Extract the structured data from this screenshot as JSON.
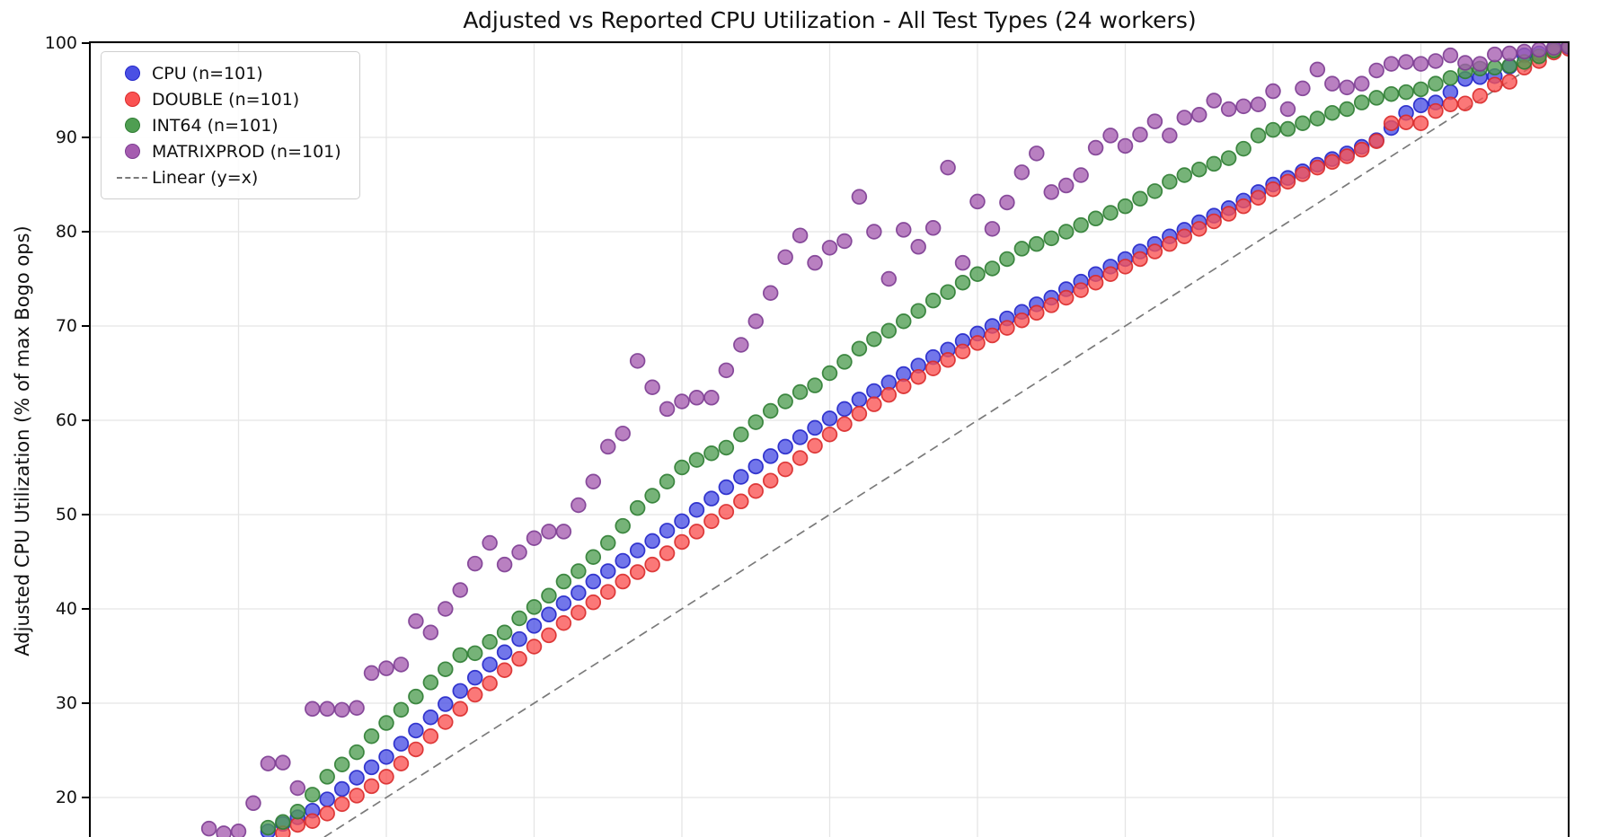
{
  "title": "Adjusted vs Reported CPU Utilization - All Test Types (24 workers)",
  "y_axis": {
    "label": "Adjusted CPU Utilization (% of max Bogo ops)",
    "ticks": [
      100,
      90,
      80,
      70,
      60,
      50,
      40,
      30,
      20
    ]
  },
  "legend": {
    "items": [
      {
        "label": "CPU (n=101)",
        "marker": "dot",
        "fill": "#4a50e4",
        "edge": "#2226c9"
      },
      {
        "label": "DOUBLE (n=101)",
        "marker": "dot",
        "fill": "#fa5252",
        "edge": "#d92b2b"
      },
      {
        "label": "INT64 (n=101)",
        "marker": "dot",
        "fill": "#4f9e52",
        "edge": "#2f7d33"
      },
      {
        "label": "MATRIXPROD (n=101)",
        "marker": "dot",
        "fill": "#a55cb0",
        "edge": "#7d3d92"
      },
      {
        "label": "Linear (y=x)",
        "marker": "dash",
        "fill": "#7a7a7a",
        "edge": "#7a7a7a"
      }
    ]
  },
  "colors": {
    "background": "#ffffff",
    "grid": "#e5e5e5",
    "spine": "#000000",
    "reference_line": "#7a7a7a"
  },
  "chart_data": {
    "type": "scatter",
    "title": "Adjusted vs Reported CPU Utilization - All Test Types (24 workers)",
    "ylabel": "Adjusted CPU Utilization (% of max Bogo ops)",
    "xlim": [
      0,
      100
    ],
    "ylim_visible": [
      15.8,
      100
    ],
    "x_tick_interval": 10,
    "grid": true,
    "legend_position": "upper-left",
    "reference_line": {
      "label": "Linear (y=x)",
      "style": "dashed",
      "from": [
        15.8,
        15.8
      ],
      "to": [
        100,
        100
      ]
    },
    "series": [
      {
        "name": "CPU (n=101)",
        "fill": "#4a50e4",
        "edge": "#2226c9",
        "x_start": 12,
        "x_step": 1,
        "y": [
          16.4,
          17.2,
          17.9,
          18.6,
          19.8,
          20.9,
          22.1,
          23.2,
          24.3,
          25.7,
          27.1,
          28.5,
          29.9,
          31.3,
          32.7,
          34.1,
          35.4,
          36.8,
          38.2,
          39.4,
          40.6,
          41.7,
          42.9,
          44.0,
          45.1,
          46.2,
          47.2,
          48.3,
          49.3,
          50.5,
          51.7,
          52.9,
          54.0,
          55.1,
          56.2,
          57.2,
          58.2,
          59.2,
          60.2,
          61.2,
          62.2,
          63.1,
          64.0,
          64.9,
          65.8,
          66.7,
          67.5,
          68.4,
          69.2,
          70.0,
          70.8,
          71.5,
          72.3,
          73.0,
          73.9,
          74.7,
          75.5,
          76.3,
          77.1,
          77.9,
          78.7,
          79.5,
          80.2,
          81.0,
          81.7,
          82.5,
          83.3,
          84.2,
          85.0,
          85.7,
          86.4,
          87.1,
          87.7,
          88.3,
          89.0,
          89.7,
          91.0,
          92.6,
          93.4,
          93.7,
          94.8,
          96.2,
          96.4,
          96.5,
          97.5,
          98.7,
          98.9,
          99.3,
          99.7
        ]
      },
      {
        "name": "DOUBLE (n=101)",
        "fill": "#fa5252",
        "edge": "#d92b2b",
        "x_start": 13,
        "x_step": 1,
        "y": [
          16.2,
          17.1,
          17.5,
          18.3,
          19.3,
          20.2,
          21.2,
          22.2,
          23.6,
          25.1,
          26.5,
          28.0,
          29.4,
          30.9,
          32.1,
          33.5,
          34.7,
          36.0,
          37.2,
          38.5,
          39.6,
          40.7,
          41.8,
          42.9,
          43.9,
          44.7,
          45.9,
          47.1,
          48.2,
          49.3,
          50.3,
          51.4,
          52.5,
          53.6,
          54.8,
          56.0,
          57.3,
          58.5,
          59.6,
          60.7,
          61.7,
          62.7,
          63.6,
          64.6,
          65.5,
          66.4,
          67.3,
          68.2,
          69.0,
          69.8,
          70.6,
          71.4,
          72.2,
          73.0,
          73.8,
          74.6,
          75.5,
          76.3,
          77.1,
          77.9,
          78.7,
          79.5,
          80.3,
          81.1,
          81.9,
          82.7,
          83.6,
          84.5,
          85.3,
          86.1,
          86.8,
          87.4,
          88.0,
          88.7,
          89.6,
          91.5,
          91.6,
          91.5,
          92.8,
          93.5,
          93.6,
          94.4,
          95.6,
          95.9,
          97.4,
          98.1,
          99.0,
          99.4
        ]
      },
      {
        "name": "INT64 (n=101)",
        "fill": "#4f9e52",
        "edge": "#2f7d33",
        "x_start": 12,
        "x_step": 1,
        "y": [
          16.8,
          17.4,
          18.5,
          20.3,
          22.2,
          23.5,
          24.8,
          26.5,
          27.9,
          29.3,
          30.7,
          32.2,
          33.6,
          35.1,
          35.3,
          36.5,
          37.5,
          39.0,
          40.2,
          41.4,
          42.9,
          44.0,
          45.5,
          47.0,
          48.8,
          50.7,
          52.0,
          53.5,
          55.0,
          55.8,
          56.5,
          57.1,
          58.5,
          59.8,
          61.0,
          62.0,
          63.0,
          63.7,
          65.0,
          66.2,
          67.6,
          68.6,
          69.5,
          70.5,
          71.6,
          72.7,
          73.6,
          74.6,
          75.5,
          76.1,
          77.1,
          78.2,
          78.7,
          79.3,
          80.0,
          80.7,
          81.4,
          82.0,
          82.7,
          83.5,
          84.3,
          85.3,
          86.0,
          86.6,
          87.2,
          87.8,
          88.8,
          90.2,
          90.8,
          90.9,
          91.5,
          92.0,
          92.6,
          93.0,
          93.7,
          94.2,
          94.6,
          94.8,
          95.1,
          95.7,
          96.3,
          97.0,
          97.3,
          97.4,
          97.6,
          98.0,
          98.6,
          99.2,
          99.8
        ]
      },
      {
        "name": "MATRIXPROD (n=101)",
        "fill": "#a55cb0",
        "edge": "#7d3d92",
        "x_start": 8,
        "x_step": 1,
        "y": [
          16.7,
          16.2,
          16.4,
          19.4,
          23.6,
          23.7,
          21.0,
          29.4,
          29.4,
          29.3,
          29.5,
          33.2,
          33.7,
          34.1,
          38.7,
          37.5,
          40.0,
          42.0,
          44.8,
          47.0,
          44.7,
          46.0,
          47.5,
          48.2,
          48.2,
          51.0,
          53.5,
          57.2,
          58.6,
          66.3,
          63.5,
          61.2,
          62.0,
          62.4,
          62.4,
          65.3,
          68.0,
          70.5,
          73.5,
          77.3,
          79.6,
          76.7,
          78.3,
          79.0,
          83.7,
          80.0,
          75.0,
          80.2,
          78.4,
          80.4,
          86.8,
          76.7,
          83.2,
          80.3,
          83.1,
          86.3,
          88.3,
          84.2,
          84.9,
          86.0,
          88.9,
          90.2,
          89.1,
          90.3,
          91.7,
          90.2,
          92.1,
          92.4,
          93.9,
          93.0,
          93.3,
          93.5,
          94.9,
          93.0,
          95.2,
          97.2,
          95.7,
          95.3,
          95.7,
          97.1,
          97.8,
          98.0,
          97.8,
          98.1,
          98.7,
          97.9,
          97.8,
          98.8,
          98.9,
          99.1,
          99.3,
          99.5,
          99.6
        ]
      }
    ]
  }
}
